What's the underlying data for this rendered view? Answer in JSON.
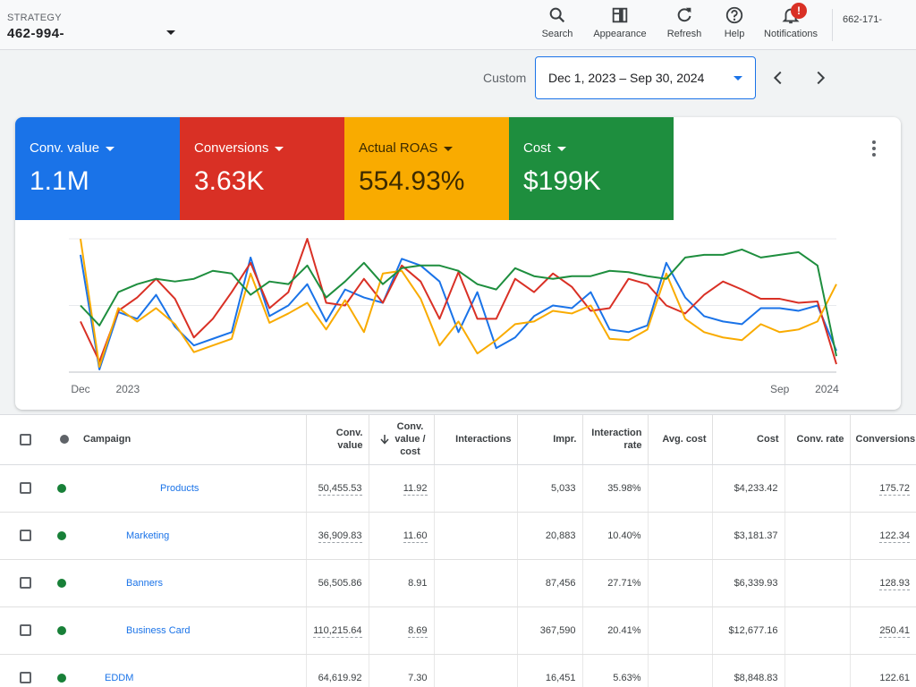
{
  "header": {
    "strategy_label": "STRATEGY",
    "strategy_value": "462-994-",
    "tools": [
      {
        "label": "Search",
        "icon": "search-icon"
      },
      {
        "label": "Appearance",
        "icon": "appearance-icon"
      },
      {
        "label": "Refresh",
        "icon": "refresh-icon"
      },
      {
        "label": "Help",
        "icon": "help-icon"
      },
      {
        "label": "Notifications",
        "icon": "bell-icon"
      }
    ],
    "notification_badge": "!",
    "account": "662-171-"
  },
  "date_range": {
    "label": "Custom",
    "value": "Dec 1, 2023 – Sep 30, 2024"
  },
  "metrics": [
    {
      "name": "Conv. value",
      "value": "1.1M",
      "color": "#1a73e8"
    },
    {
      "name": "Conversions",
      "value": "3.63K",
      "color": "#d93025"
    },
    {
      "name": "Actual ROAS",
      "value": "554.93%",
      "color": "#f9ab00"
    },
    {
      "name": "Cost",
      "value": "$199K",
      "color": "#1e8e3e"
    }
  ],
  "chart_data": {
    "type": "line",
    "x_labels": [
      {
        "text": "Dec",
        "index": 0
      },
      {
        "text": "2023",
        "index": 2.5
      },
      {
        "text": "Sep",
        "index": 37
      },
      {
        "text": "2024",
        "index": 39.5
      }
    ],
    "ylim": [
      0,
      100
    ],
    "grid": true,
    "series": [
      {
        "color": "#1a73e8",
        "values": [
          88,
          2,
          45,
          40,
          58,
          34,
          20,
          25,
          30,
          86,
          42,
          50,
          66,
          38,
          62,
          56,
          52,
          85,
          80,
          68,
          30,
          60,
          18,
          26,
          42,
          50,
          48,
          60,
          32,
          30,
          35,
          82,
          56,
          42,
          38,
          36,
          48,
          48,
          46,
          50,
          16
        ]
      },
      {
        "color": "#d93025",
        "values": [
          38,
          8,
          46,
          56,
          70,
          55,
          26,
          40,
          60,
          82,
          48,
          60,
          100,
          52,
          50,
          70,
          52,
          80,
          68,
          40,
          75,
          40,
          40,
          70,
          60,
          74,
          64,
          46,
          48,
          70,
          66,
          50,
          44,
          58,
          68,
          62,
          55,
          55,
          52,
          53,
          6
        ]
      },
      {
        "color": "#f9ab00",
        "values": [
          100,
          4,
          48,
          38,
          48,
          36,
          15,
          20,
          25,
          74,
          37,
          44,
          52,
          32,
          54,
          30,
          74,
          76,
          55,
          20,
          38,
          14,
          24,
          36,
          38,
          46,
          44,
          50,
          25,
          24,
          32,
          74,
          40,
          30,
          26,
          24,
          36,
          30,
          32,
          38,
          66
        ]
      },
      {
        "color": "#1e8e3e",
        "values": [
          50,
          35,
          60,
          66,
          70,
          68,
          70,
          76,
          74,
          58,
          68,
          66,
          80,
          56,
          68,
          82,
          66,
          78,
          80,
          80,
          76,
          66,
          62,
          78,
          72,
          70,
          72,
          72,
          76,
          75,
          72,
          70,
          86,
          88,
          88,
          92,
          86,
          88,
          90,
          80,
          12
        ]
      }
    ]
  },
  "table": {
    "columns": [
      "Campaign",
      "Conv. value",
      "Conv. value / cost",
      "Interactions",
      "Impr.",
      "Interaction rate",
      "Avg. cost",
      "Cost",
      "Conv. rate",
      "Conversions"
    ],
    "rows": [
      {
        "campaign": "Products",
        "conv_value": "50,455.53",
        "roas": "11.92",
        "interactions": "",
        "impr": "5,033",
        "interaction_rate": "35.98%",
        "avg_cost": "",
        "cost": "$4,233.42",
        "conv_rate": "",
        "conversions": "175.72"
      },
      {
        "campaign": "Marketing",
        "conv_value": "36,909.83",
        "roas": "11.60",
        "interactions": "",
        "impr": "20,883",
        "interaction_rate": "10.40%",
        "avg_cost": "",
        "cost": "$3,181.37",
        "conv_rate": "",
        "conversions": "122.34"
      },
      {
        "campaign": "Banners",
        "conv_value": "56,505.86",
        "roas": "8.91",
        "interactions": "",
        "impr": "87,456",
        "interaction_rate": "27.71%",
        "avg_cost": "",
        "cost": "$6,339.93",
        "conv_rate": "",
        "conversions": "128.93"
      },
      {
        "campaign": "Business Card",
        "conv_value": "110,215.64",
        "roas": "8.69",
        "interactions": "",
        "impr": "367,590",
        "interaction_rate": "20.41%",
        "avg_cost": "",
        "cost": "$12,677.16",
        "conv_rate": "",
        "conversions": "250.41"
      },
      {
        "campaign": "EDDM",
        "conv_value": "64,619.92",
        "roas": "7.30",
        "interactions": "",
        "impr": "16,451",
        "interaction_rate": "5.63%",
        "avg_cost": "",
        "cost": "$8,848.83",
        "conv_rate": "",
        "conversions": "122.61"
      }
    ]
  }
}
